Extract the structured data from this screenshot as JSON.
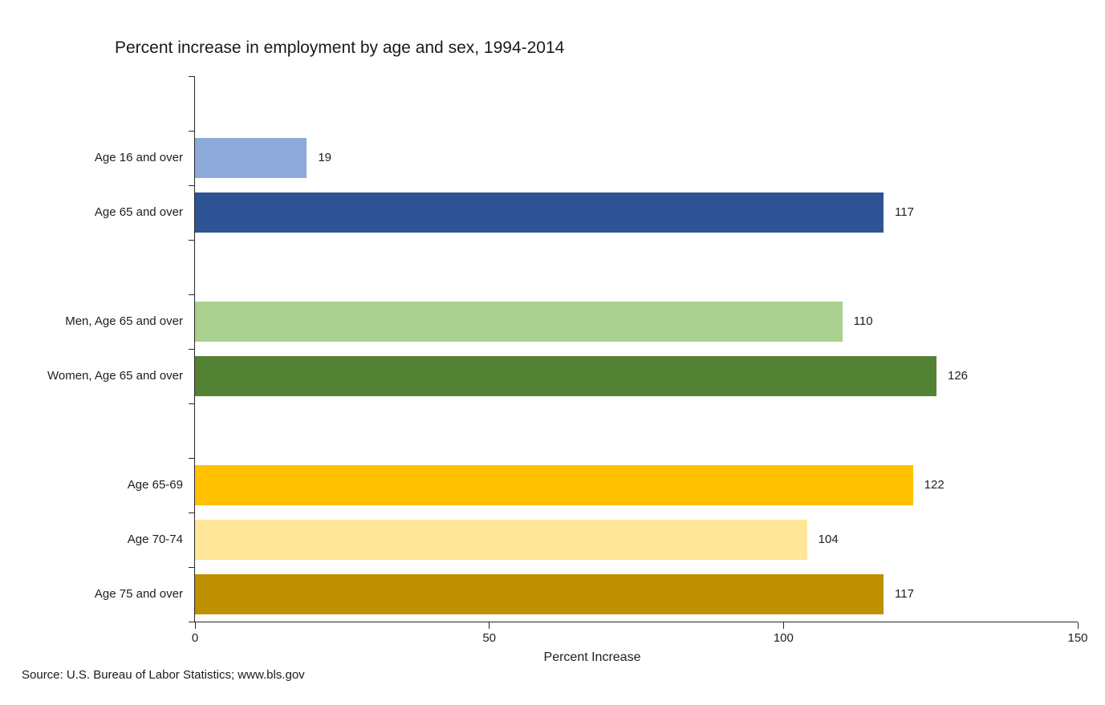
{
  "source_note": "Source: U.S. Bureau of Labor Statistics; www.bls.gov",
  "chart_data": {
    "type": "bar",
    "orientation": "horizontal",
    "title": "Percent increase in employment by age and sex, 1994-2014",
    "xlabel": "Percent Increase",
    "ylabel": "",
    "xlim": [
      0,
      150
    ],
    "x_ticks": [
      "0",
      "50",
      "100",
      "150"
    ],
    "grid": false,
    "legend": false,
    "value_labels_shown": true,
    "total_row_slots": 10,
    "categories": [
      "Age 16 and over",
      "Age 65 and over",
      "Men, Age 65 and over",
      "Women, Age 65 and over",
      "Age 65-69",
      "Age 70-74",
      "Age 75 and over"
    ],
    "values": [
      19,
      117,
      110,
      126,
      122,
      104,
      117
    ],
    "rows": [
      {
        "label": "Age 16 and over",
        "value": 19,
        "color": "#8EAADB",
        "slot": 1
      },
      {
        "label": "Age 65 and over",
        "value": 117,
        "color": "#2F5496",
        "slot": 2
      },
      {
        "label": "Men, Age 65 and over",
        "value": 110,
        "color": "#A9D08E",
        "slot": 4
      },
      {
        "label": "Women, Age 65 and over",
        "value": 126,
        "color": "#548235",
        "slot": 5
      },
      {
        "label": "Age 65-69",
        "value": 122,
        "color": "#FFC000",
        "slot": 7
      },
      {
        "label": "Age 70-74",
        "value": 104,
        "color": "#FFE699",
        "slot": 8
      },
      {
        "label": "Age 75 and over",
        "value": 117,
        "color": "#BF9000",
        "slot": 9
      }
    ]
  }
}
